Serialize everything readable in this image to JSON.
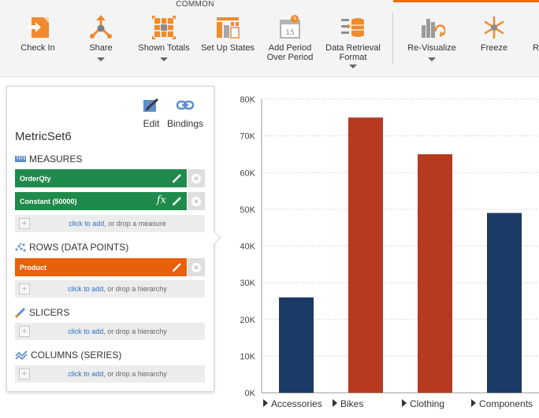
{
  "ribbon": {
    "group_label": "COMMON",
    "buttons": [
      {
        "label": "Check In",
        "icon": "check-in-icon"
      },
      {
        "label": "Share",
        "icon": "share-icon"
      },
      {
        "label": "Shown Totals",
        "icon": "shown-totals-icon"
      },
      {
        "label": "Set Up States",
        "icon": "set-up-states-icon"
      },
      {
        "label": "Add Period",
        "label2": "Over Period",
        "icon": "calendar-icon"
      },
      {
        "label": "Data Retrieval",
        "label2": "Format",
        "icon": "data-retrieval-icon"
      },
      {
        "label": "Re-Visualize",
        "icon": "re-visualize-icon"
      },
      {
        "label": "Freeze",
        "icon": "snowflake-icon"
      },
      {
        "label": "R",
        "icon": "cut-off-button"
      }
    ]
  },
  "panel": {
    "edit_label": "Edit",
    "bindings_label": "Bindings",
    "metric_title": "MetricSet6",
    "measures": {
      "heading": "MEASURES",
      "items": [
        "OrderQty",
        "Constant (50000)"
      ],
      "fx_label": "fx",
      "drop_link": "click to add",
      "drop_text": ", or drop a measure"
    },
    "rows": {
      "heading": "ROWS (DATA POINTS)",
      "items": [
        "Product"
      ],
      "drop_link": "click to add",
      "drop_text": ", or drop a hierarchy"
    },
    "slicers": {
      "heading": "SLICERS",
      "drop_link": "click to add",
      "drop_text": ", or drop a hierarchy"
    },
    "columns": {
      "heading": "COLUMNS (SERIES)",
      "drop_link": "click to add",
      "drop_text": ", or drop a hierarchy"
    }
  },
  "colors": {
    "accent_orange": "#e8600a",
    "measure_green": "#1f8a4c",
    "bar_navy": "#1c3a66",
    "bar_rust": "#b53a20"
  },
  "chart_data": {
    "type": "bar",
    "categories": [
      "Accessories",
      "Bikes",
      "Clothing",
      "Components"
    ],
    "values": [
      26000,
      75000,
      65000,
      49000
    ],
    "bar_colors": [
      "#1c3a66",
      "#b53a20",
      "#b53a20",
      "#1c3a66"
    ],
    "ylim": [
      0,
      80000
    ],
    "yticks": [
      0,
      10000,
      20000,
      30000,
      40000,
      50000,
      60000,
      70000,
      80000
    ],
    "ytick_labels": [
      "0K",
      "10K",
      "20K",
      "30K",
      "40K",
      "50K",
      "60K",
      "70K",
      "80K"
    ],
    "grid": true,
    "title": "",
    "xlabel": "",
    "ylabel": ""
  }
}
